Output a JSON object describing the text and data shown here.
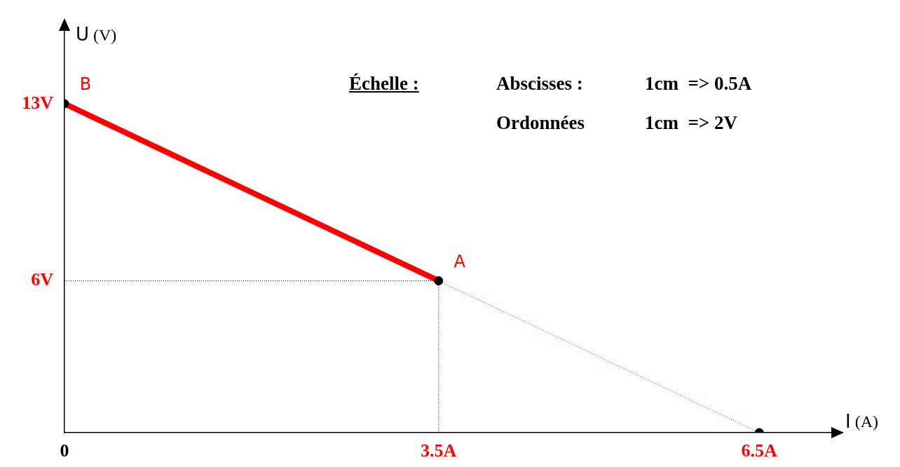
{
  "chart_data": {
    "type": "line",
    "xlabel": "I (A)",
    "ylabel": "U (V)",
    "xlim": [
      0,
      7.2
    ],
    "ylim": [
      0,
      16
    ],
    "xticks": [
      {
        "value": 0,
        "label": "0"
      },
      {
        "value": 3.5,
        "label": "3.5A"
      },
      {
        "value": 6.5,
        "label": "6.5A"
      }
    ],
    "yticks": [
      {
        "value": 6,
        "label": "6V"
      },
      {
        "value": 13,
        "label": "13V"
      }
    ],
    "grid": false,
    "legend": false,
    "series": [
      {
        "type": "line",
        "x": [
          0,
          3.5
        ],
        "values": [
          13,
          6
        ],
        "color": "#ff0000",
        "line_style": "solid",
        "marker": "none"
      },
      {
        "type": "line",
        "x": [
          3.5,
          6.5
        ],
        "values": [
          6,
          0
        ],
        "color": "#ff0000",
        "line_style": "dotted",
        "marker": "none"
      },
      {
        "type": "line",
        "x": [
          0,
          3.5,
          3.5
        ],
        "values": [
          6,
          6,
          0
        ],
        "color": "#000000",
        "line_style": "dotted",
        "marker": "none"
      },
      {
        "type": "scatter",
        "x": [
          0,
          3.5,
          6.5
        ],
        "values": [
          13,
          6,
          0
        ],
        "color": "#000000",
        "marker": "circle"
      }
    ],
    "annotations": [
      {
        "text": "B",
        "x": 0,
        "y": 13
      },
      {
        "text": "A",
        "x": 3.5,
        "y": 6
      },
      "Échelle :",
      "Abscisses :",
      "1cm  => 0.5A",
      "Ordonnées",
      "1cm  => 2V"
    ]
  }
}
